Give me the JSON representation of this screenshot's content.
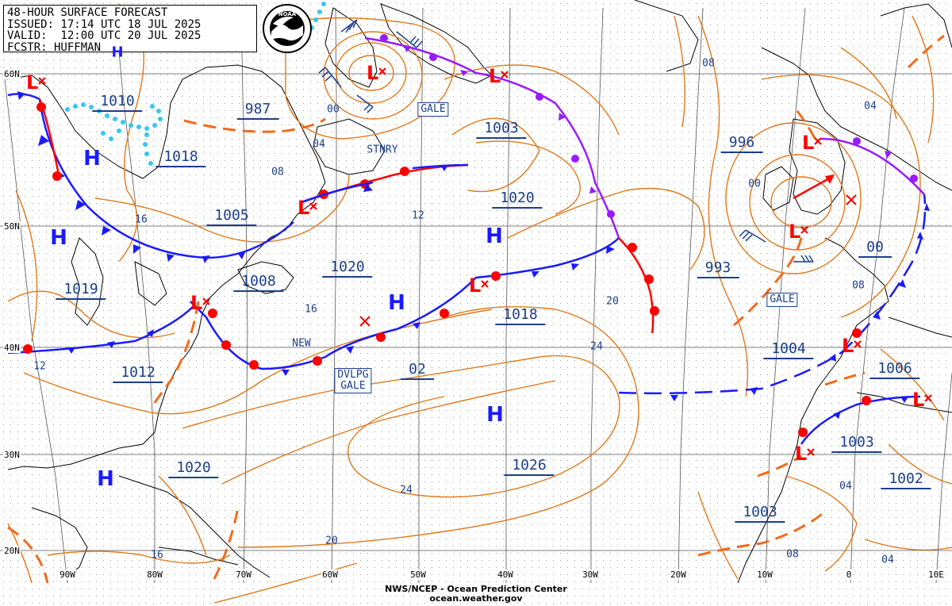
{
  "header": {
    "line1": "48-HOUR SURFACE FORECAST",
    "line2": "ISSUED: 17:14 UTC 18 JUL 2025",
    "line3": "VALID:  12:00 UTC 20 JUL 2025",
    "line4": "FCSTR: HUFFMAN"
  },
  "logo": "NOAA",
  "footer": {
    "line1": "NWS/NCEP - Ocean Prediction Center",
    "line2": "ocean.weather.gov"
  },
  "lat_labels": [
    "60N",
    "50N",
    "40N",
    "30N",
    "20N"
  ],
  "lon_labels": [
    "90W",
    "80W",
    "70W",
    "60W",
    "50W",
    "40W",
    "30W",
    "20W",
    "10W",
    "0",
    "10E"
  ],
  "pressure_labels": [
    "1010",
    "1018",
    "987",
    "1005",
    "1003",
    "1020",
    "1019",
    "1008",
    "1020",
    "1018",
    "1012",
    "1020",
    "1026",
    "996",
    "993",
    "00",
    "1004",
    "1006",
    "1003",
    "1002",
    "1003"
  ],
  "contour_labels": [
    "00",
    "04",
    "08",
    "16",
    "12",
    "16",
    "12",
    "20",
    "24",
    "02",
    "24",
    "20",
    "16",
    "08",
    "04",
    "00",
    "08",
    "04",
    "08",
    "04"
  ],
  "boxes": [
    "GALE",
    "GALE",
    "DVLPG\nGALE"
  ],
  "front_labels": [
    "STNRY",
    "NEW"
  ],
  "highs": [
    "H",
    "H",
    "H",
    "H",
    "H",
    "H",
    "H"
  ],
  "lows": [
    "L",
    "L",
    "L",
    "L",
    "L",
    "L",
    "L",
    "L",
    "L",
    "L",
    "L"
  ],
  "colors": {
    "isobar": "#e0781a",
    "trough": "#f26a1b",
    "cold_front": "#1a1aff",
    "warm_front": "#ff0000",
    "occluded_front": "#9a1aff",
    "label_text": "#1a3e8c",
    "ice": "#33c8f0",
    "grid": "#333333",
    "coast": "#000000"
  }
}
